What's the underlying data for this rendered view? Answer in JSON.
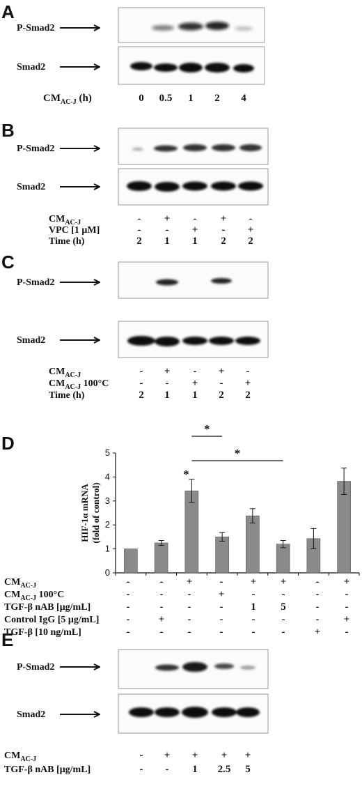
{
  "panels": {
    "A": {
      "letter": "A",
      "blot_top": "P-Smad2",
      "blot_bottom": "Smad2",
      "axis_label_main": "CM",
      "axis_label_sub": "AC-J",
      "axis_label_suffix": " (h)",
      "lanes": [
        "0",
        "0.5",
        "1",
        "2",
        "4"
      ]
    },
    "B": {
      "letter": "B",
      "blot_top": "P-Smad2",
      "blot_bottom": "Smad2",
      "rows": [
        {
          "main": "CM",
          "sub": "AC-J",
          "suffix": "",
          "values": [
            "-",
            "+",
            "-",
            "+",
            "-"
          ]
        },
        {
          "main": "VPC [1 μM]",
          "sub": "",
          "suffix": "",
          "values": [
            "-",
            "-",
            "+",
            "-",
            "+"
          ]
        },
        {
          "main": "Time (h)",
          "sub": "",
          "suffix": "",
          "values": [
            "2",
            "1",
            "1",
            "2",
            "2"
          ]
        }
      ]
    },
    "C": {
      "letter": "C",
      "blot_top": "P-Smad2",
      "blot_bottom": "Smad2",
      "rows": [
        {
          "main": "CM",
          "sub": "AC-J",
          "suffix": "",
          "values": [
            "-",
            "+",
            "-",
            "+",
            "-"
          ]
        },
        {
          "main": "CM",
          "sub": "AC-J",
          "suffix": " 100°C",
          "values": [
            "-",
            "-",
            "+",
            "-",
            "+"
          ]
        },
        {
          "main": "Time (h)",
          "sub": "",
          "suffix": "",
          "values": [
            "2",
            "1",
            "1",
            "2",
            "2"
          ]
        }
      ]
    },
    "D": {
      "letter": "D",
      "ylabel_line1": "HIF-1α mRNA",
      "ylabel_line2": "(fold of control)",
      "sig_marker": "*",
      "rows": [
        {
          "main": "CM",
          "sub": "AC-J",
          "suffix": "",
          "values": [
            "-",
            "-",
            "+",
            "-",
            "+",
            "+",
            "-",
            "+"
          ]
        },
        {
          "main": "CM",
          "sub": "AC-J",
          "suffix": " 100°C",
          "values": [
            "-",
            "-",
            "-",
            "+",
            "-",
            "-",
            "-",
            "-"
          ]
        },
        {
          "main": "TGF-β nAB [μg/mL]",
          "sub": "",
          "suffix": "",
          "values": [
            "-",
            "-",
            "-",
            "-",
            "1",
            "5",
            "-",
            "-"
          ]
        },
        {
          "main": "Control IgG [5 μg/mL]",
          "sub": "",
          "suffix": "",
          "values": [
            "-",
            "+",
            "-",
            "-",
            "-",
            "-",
            "-",
            "+"
          ]
        },
        {
          "main": "TGF-β [10 ng/mL]",
          "sub": "",
          "suffix": "",
          "values": [
            "-",
            "-",
            "-",
            "-",
            "-",
            "-",
            "+",
            "-"
          ]
        }
      ]
    },
    "E": {
      "letter": "E",
      "blot_top": "P-Smad2",
      "blot_bottom": "Smad2",
      "rows": [
        {
          "main": "CM",
          "sub": "AC-J",
          "suffix": "",
          "values": [
            "-",
            "+",
            "+",
            "+",
            "+"
          ]
        },
        {
          "main": "TGF-β nAB [μg/mL]",
          "sub": "",
          "suffix": "",
          "values": [
            "-",
            "-",
            "1",
            "2.5",
            "5"
          ]
        }
      ]
    }
  },
  "chart_data": {
    "type": "bar",
    "categories": [
      "1",
      "2",
      "3",
      "4",
      "5",
      "6",
      "7",
      "8"
    ],
    "values": [
      1.0,
      1.25,
      3.42,
      1.5,
      2.38,
      1.2,
      1.43,
      3.82
    ],
    "errors": [
      0.0,
      0.1,
      0.48,
      0.18,
      0.3,
      0.15,
      0.42,
      0.55
    ],
    "ylabel": "HIF-1α mRNA (fold of control)",
    "ylim": [
      0,
      5
    ],
    "yticks": [
      "0",
      "1",
      "2",
      "3",
      "4",
      "5"
    ],
    "bar_color": "#8a8a8a",
    "significance": [
      {
        "from": 3,
        "to": 4,
        "label": "*"
      },
      {
        "from": 3,
        "to": 6,
        "label": "*"
      }
    ],
    "bar_annotation": {
      "bar": 3,
      "label": "*"
    }
  }
}
